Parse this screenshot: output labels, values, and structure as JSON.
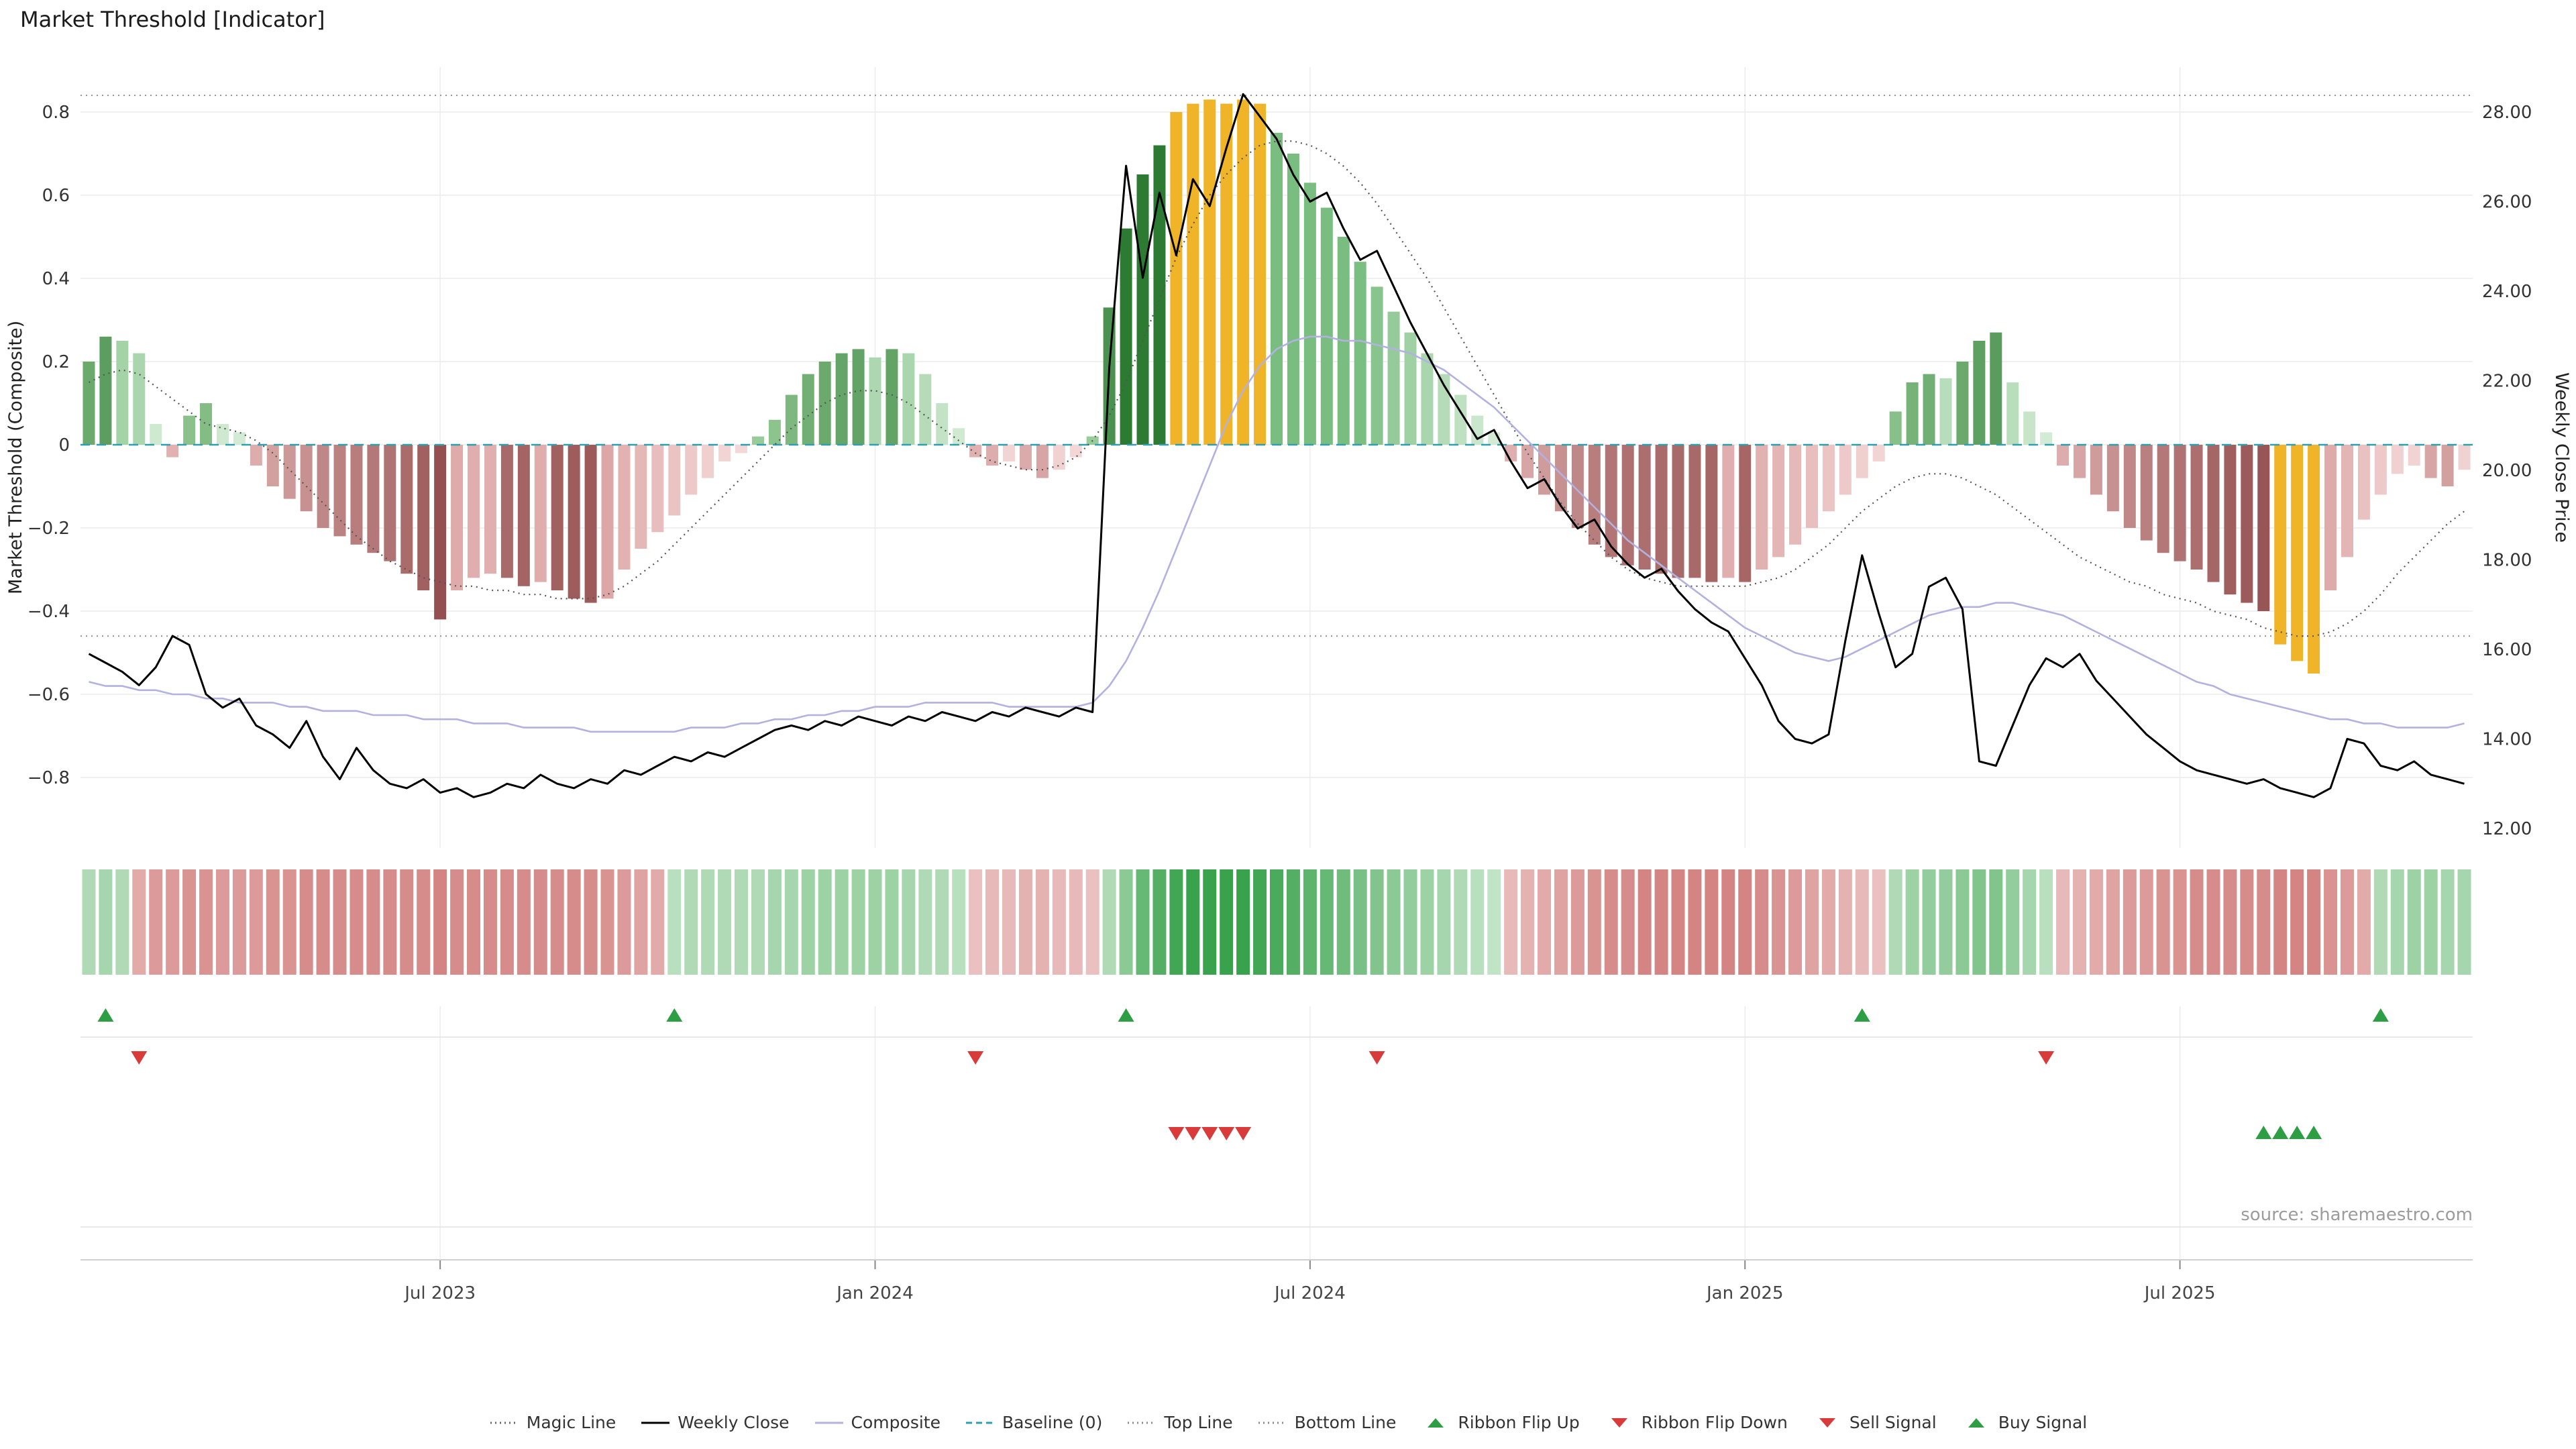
{
  "source": "source: sharemaestro.com",
  "colors": {
    "background": "#ffffff",
    "weekly_close": "#000000",
    "composite": "#b3b1e0",
    "magic_line": "#555555",
    "baseline": "#2d9fb0",
    "reference_line": "#8a8a8a",
    "grid": "#ececec",
    "gold": "#f0b429",
    "green_dark": "#2d7a33",
    "green_light": "#d9eeda",
    "red_dark": "#8e4848",
    "red_light": "#f5dada",
    "signal_green": "#2e9e44",
    "signal_red": "#d93a3a"
  },
  "legend": [
    {
      "label": "Magic Line",
      "swatch": "dotted",
      "color": "#666666"
    },
    {
      "label": "Weekly Close",
      "swatch": "solid",
      "color": "#000000"
    },
    {
      "label": "Composite",
      "swatch": "solid",
      "color": "#b3b1e0"
    },
    {
      "label": "Baseline (0)",
      "swatch": "dashed",
      "color": "#2d9fb0"
    },
    {
      "label": "Top Line",
      "swatch": "dotted",
      "color": "#8a8a8a"
    },
    {
      "label": "Bottom Line",
      "swatch": "dotted",
      "color": "#8a8a8a"
    },
    {
      "label": "Ribbon Flip Up",
      "swatch": "triangle-up",
      "color": "#2e9e44"
    },
    {
      "label": "Ribbon Flip Down",
      "swatch": "triangle-down",
      "color": "#d93a3a"
    },
    {
      "label": "Sell Signal",
      "swatch": "triangle-down",
      "color": "#d93a3a"
    },
    {
      "label": "Buy Signal",
      "swatch": "triangle-up",
      "color": "#2e9e44"
    }
  ],
  "chart_data": {
    "type": "bar",
    "title": "Market Threshold [Indicator]",
    "ylabel_left": "Market Threshold (Composite)",
    "ylabel_right": "Weekly Close Price",
    "ylim_left": [
      -0.95,
      0.95
    ],
    "ylim_right": [
      11.6,
      28.8
    ],
    "yticks_left": [
      -0.8,
      -0.6,
      -0.4,
      -0.2,
      0,
      0.2,
      0.4,
      0.6,
      0.8
    ],
    "yticks_right": [
      12,
      14,
      16,
      18,
      20,
      22,
      24,
      26,
      28
    ],
    "x_interval": "weekly",
    "x_start": "2023-02-05",
    "n_points": 143,
    "xtick_labels": [
      "Jul 2023",
      "Jan 2024",
      "Jul 2024",
      "Jan 2025",
      "Jul 2025"
    ],
    "xtick_weeks": [
      21,
      47,
      73,
      99,
      125
    ],
    "reference_lines": {
      "top_line": 0.84,
      "baseline": 0,
      "bottom_line": -0.46
    },
    "grid": true,
    "legend_position": "bottom",
    "gold_bar_weeks": [
      65,
      66,
      67,
      68,
      69,
      70,
      131,
      132,
      133
    ],
    "signals": {
      "ribbon_flip_up_weeks": [
        1,
        35,
        62,
        106,
        137
      ],
      "ribbon_flip_down_weeks": [
        3,
        53,
        77,
        117
      ],
      "sell_signal_weeks": [
        65,
        66,
        67,
        68,
        69
      ],
      "buy_signal_weeks": [
        130,
        131,
        132,
        133
      ]
    },
    "series": [
      {
        "name": "Market Threshold",
        "type": "bar",
        "axis": "left",
        "values": [
          0.2,
          0.26,
          0.25,
          0.22,
          0.05,
          -0.03,
          0.07,
          0.1,
          0.05,
          0.03,
          -0.05,
          -0.1,
          -0.13,
          -0.16,
          -0.2,
          -0.22,
          -0.24,
          -0.26,
          -0.28,
          -0.31,
          -0.35,
          -0.42,
          -0.35,
          -0.32,
          -0.31,
          -0.32,
          -0.34,
          -0.33,
          -0.35,
          -0.37,
          -0.38,
          -0.37,
          -0.3,
          -0.25,
          -0.21,
          -0.17,
          -0.12,
          -0.08,
          -0.04,
          -0.02,
          0.02,
          0.06,
          0.12,
          0.17,
          0.2,
          0.22,
          0.23,
          0.21,
          0.23,
          0.22,
          0.17,
          0.1,
          0.04,
          -0.03,
          -0.05,
          -0.04,
          -0.06,
          -0.08,
          -0.06,
          -0.03,
          0.02,
          0.33,
          0.52,
          0.65,
          0.72,
          0.8,
          0.82,
          0.83,
          0.82,
          0.83,
          0.82,
          0.75,
          0.7,
          0.63,
          0.57,
          0.5,
          0.44,
          0.38,
          0.32,
          0.27,
          0.22,
          0.17,
          0.12,
          0.07,
          0.03,
          -0.04,
          -0.08,
          -0.12,
          -0.16,
          -0.2,
          -0.24,
          -0.27,
          -0.29,
          -0.3,
          -0.31,
          -0.32,
          -0.32,
          -0.33,
          -0.32,
          -0.33,
          -0.3,
          -0.27,
          -0.24,
          -0.2,
          -0.16,
          -0.12,
          -0.08,
          -0.04,
          0.08,
          0.15,
          0.17,
          0.16,
          0.2,
          0.25,
          0.27,
          0.15,
          0.08,
          0.03,
          -0.05,
          -0.08,
          -0.12,
          -0.16,
          -0.2,
          -0.23,
          -0.26,
          -0.28,
          -0.3,
          -0.33,
          -0.36,
          -0.38,
          -0.4,
          -0.48,
          -0.52,
          -0.55,
          -0.35,
          -0.27,
          -0.18,
          -0.12,
          -0.07,
          -0.05,
          -0.08,
          -0.1,
          -0.06
        ]
      },
      {
        "name": "Magic Line",
        "type": "line",
        "line_style": "dotted",
        "axis": "left",
        "values": [
          0.15,
          0.17,
          0.18,
          0.17,
          0.14,
          0.11,
          0.08,
          0.05,
          0.04,
          0.03,
          0.01,
          -0.02,
          -0.06,
          -0.1,
          -0.14,
          -0.18,
          -0.22,
          -0.25,
          -0.28,
          -0.3,
          -0.32,
          -0.33,
          -0.34,
          -0.34,
          -0.35,
          -0.35,
          -0.36,
          -0.36,
          -0.37,
          -0.37,
          -0.37,
          -0.36,
          -0.34,
          -0.31,
          -0.28,
          -0.24,
          -0.2,
          -0.16,
          -0.12,
          -0.08,
          -0.04,
          0,
          0.04,
          0.07,
          0.1,
          0.12,
          0.13,
          0.13,
          0.12,
          0.1,
          0.07,
          0.04,
          0.01,
          -0.02,
          -0.04,
          -0.05,
          -0.06,
          -0.06,
          -0.05,
          -0.03,
          0.01,
          0.07,
          0.15,
          0.25,
          0.35,
          0.45,
          0.53,
          0.6,
          0.65,
          0.69,
          0.72,
          0.73,
          0.73,
          0.72,
          0.7,
          0.67,
          0.63,
          0.58,
          0.52,
          0.46,
          0.4,
          0.33,
          0.26,
          0.19,
          0.12,
          0.05,
          -0.02,
          -0.08,
          -0.14,
          -0.19,
          -0.23,
          -0.27,
          -0.3,
          -0.32,
          -0.33,
          -0.34,
          -0.34,
          -0.34,
          -0.34,
          -0.34,
          -0.33,
          -0.32,
          -0.3,
          -0.27,
          -0.24,
          -0.2,
          -0.16,
          -0.13,
          -0.1,
          -0.08,
          -0.07,
          -0.07,
          -0.08,
          -0.1,
          -0.12,
          -0.15,
          -0.18,
          -0.21,
          -0.24,
          -0.27,
          -0.29,
          -0.31,
          -0.33,
          -0.34,
          -0.36,
          -0.37,
          -0.38,
          -0.4,
          -0.41,
          -0.42,
          -0.44,
          -0.45,
          -0.46,
          -0.46,
          -0.45,
          -0.43,
          -0.4,
          -0.36,
          -0.31,
          -0.27,
          -0.23,
          -0.19,
          -0.16
        ]
      },
      {
        "name": "Composite",
        "type": "line",
        "axis": "left",
        "values": [
          -0.57,
          -0.58,
          -0.58,
          -0.59,
          -0.59,
          -0.6,
          -0.6,
          -0.61,
          -0.61,
          -0.62,
          -0.62,
          -0.62,
          -0.63,
          -0.63,
          -0.64,
          -0.64,
          -0.64,
          -0.65,
          -0.65,
          -0.65,
          -0.66,
          -0.66,
          -0.66,
          -0.67,
          -0.67,
          -0.67,
          -0.68,
          -0.68,
          -0.68,
          -0.68,
          -0.69,
          -0.69,
          -0.69,
          -0.69,
          -0.69,
          -0.69,
          -0.68,
          -0.68,
          -0.68,
          -0.67,
          -0.67,
          -0.66,
          -0.66,
          -0.65,
          -0.65,
          -0.64,
          -0.64,
          -0.63,
          -0.63,
          -0.63,
          -0.62,
          -0.62,
          -0.62,
          -0.62,
          -0.62,
          -0.63,
          -0.63,
          -0.63,
          -0.63,
          -0.63,
          -0.62,
          -0.58,
          -0.52,
          -0.44,
          -0.35,
          -0.25,
          -0.15,
          -0.05,
          0.05,
          0.13,
          0.19,
          0.23,
          0.25,
          0.26,
          0.26,
          0.25,
          0.25,
          0.24,
          0.23,
          0.22,
          0.2,
          0.18,
          0.15,
          0.12,
          0.09,
          0.05,
          0.01,
          -0.03,
          -0.07,
          -0.11,
          -0.15,
          -0.19,
          -0.23,
          -0.26,
          -0.29,
          -0.32,
          -0.35,
          -0.38,
          -0.41,
          -0.44,
          -0.46,
          -0.48,
          -0.5,
          -0.51,
          -0.52,
          -0.51,
          -0.49,
          -0.47,
          -0.45,
          -0.43,
          -0.41,
          -0.4,
          -0.39,
          -0.39,
          -0.38,
          -0.38,
          -0.39,
          -0.4,
          -0.41,
          -0.43,
          -0.45,
          -0.47,
          -0.49,
          -0.51,
          -0.53,
          -0.55,
          -0.57,
          -0.58,
          -0.6,
          -0.61,
          -0.62,
          -0.63,
          -0.64,
          -0.65,
          -0.66,
          -0.66,
          -0.67,
          -0.67,
          -0.68,
          -0.68,
          -0.68,
          -0.68,
          -0.67
        ]
      },
      {
        "name": "Weekly Close",
        "type": "line",
        "axis": "right",
        "values": [
          15.9,
          15.7,
          15.5,
          15.2,
          15.6,
          16.3,
          16.1,
          15.0,
          14.7,
          14.9,
          14.3,
          14.1,
          13.8,
          14.4,
          13.6,
          13.1,
          13.8,
          13.3,
          13.0,
          12.9,
          13.1,
          12.8,
          12.9,
          12.7,
          12.8,
          13.0,
          12.9,
          13.2,
          13.0,
          12.9,
          13.1,
          13.0,
          13.3,
          13.2,
          13.4,
          13.6,
          13.5,
          13.7,
          13.6,
          13.8,
          14.0,
          14.2,
          14.3,
          14.2,
          14.4,
          14.3,
          14.5,
          14.4,
          14.3,
          14.5,
          14.4,
          14.6,
          14.5,
          14.4,
          14.6,
          14.5,
          14.7,
          14.6,
          14.5,
          14.7,
          14.6,
          22.3,
          26.8,
          24.3,
          26.2,
          24.8,
          26.5,
          25.9,
          27.2,
          28.4,
          27.9,
          27.4,
          26.6,
          26.0,
          26.2,
          25.4,
          24.7,
          24.9,
          24.1,
          23.3,
          22.6,
          21.9,
          21.3,
          20.7,
          20.9,
          20.2,
          19.6,
          19.8,
          19.2,
          18.7,
          18.9,
          18.3,
          17.9,
          17.6,
          17.8,
          17.3,
          16.9,
          16.6,
          16.4,
          15.8,
          15.2,
          14.4,
          14.0,
          13.9,
          14.1,
          16.2,
          18.1,
          16.8,
          15.6,
          15.9,
          17.4,
          17.6,
          16.9,
          13.5,
          13.4,
          14.3,
          15.2,
          15.8,
          15.6,
          15.9,
          15.3,
          14.9,
          14.5,
          14.1,
          13.8,
          13.5,
          13.3,
          13.2,
          13.1,
          13.0,
          13.1,
          12.9,
          12.8,
          12.7,
          12.9,
          14.0,
          13.9,
          13.4,
          13.3,
          13.5,
          13.2,
          13.1,
          13.0
        ]
      },
      {
        "name": "Ribbon",
        "type": "heatmap",
        "values": [
          0.3,
          0.35,
          0.3,
          -0.4,
          -0.5,
          -0.5,
          -0.55,
          -0.55,
          -0.5,
          -0.5,
          -0.5,
          -0.55,
          -0.55,
          -0.6,
          -0.6,
          -0.6,
          -0.6,
          -0.6,
          -0.6,
          -0.6,
          -0.6,
          -0.65,
          -0.6,
          -0.6,
          -0.6,
          -0.6,
          -0.6,
          -0.6,
          -0.6,
          -0.6,
          -0.6,
          -0.55,
          -0.5,
          -0.45,
          -0.4,
          0.25,
          0.3,
          0.3,
          0.3,
          0.3,
          0.3,
          0.35,
          0.35,
          0.4,
          0.4,
          0.4,
          0.4,
          0.4,
          0.4,
          0.35,
          0.3,
          0.3,
          0.25,
          -0.25,
          -0.3,
          -0.3,
          -0.35,
          -0.35,
          -0.3,
          -0.3,
          -0.25,
          0.3,
          0.5,
          0.7,
          0.8,
          0.9,
          0.95,
          0.95,
          0.95,
          0.95,
          0.9,
          0.85,
          0.8,
          0.75,
          0.7,
          0.65,
          0.6,
          0.55,
          0.5,
          0.45,
          0.4,
          0.35,
          0.3,
          0.25,
          0.2,
          -0.3,
          -0.35,
          -0.4,
          -0.45,
          -0.5,
          -0.55,
          -0.6,
          -0.6,
          -0.65,
          -0.65,
          -0.65,
          -0.65,
          -0.65,
          -0.65,
          -0.65,
          -0.6,
          -0.55,
          -0.5,
          -0.45,
          -0.4,
          -0.35,
          -0.3,
          -0.25,
          0.3,
          0.4,
          0.45,
          0.45,
          0.5,
          0.55,
          0.55,
          0.45,
          0.35,
          0.25,
          -0.3,
          -0.35,
          -0.4,
          -0.45,
          -0.5,
          -0.5,
          -0.55,
          -0.55,
          -0.6,
          -0.6,
          -0.6,
          -0.6,
          -0.6,
          -0.65,
          -0.65,
          -0.65,
          -0.55,
          -0.5,
          -0.4,
          0.3,
          0.35,
          0.4,
          0.4,
          0.35,
          0.35
        ]
      }
    ]
  }
}
